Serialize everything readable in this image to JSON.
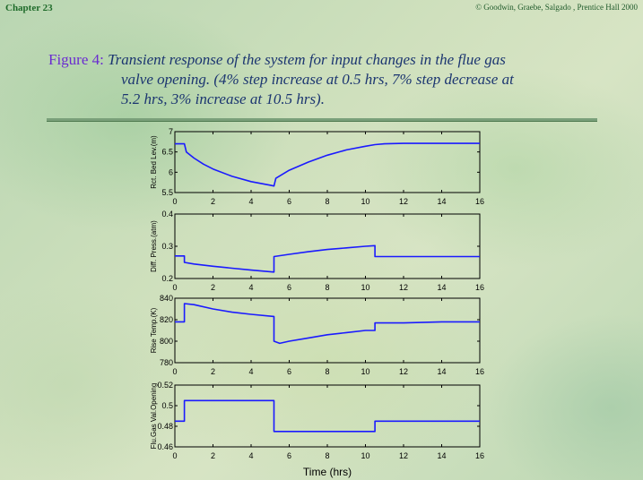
{
  "header": {
    "chapter": "Chapter 23",
    "copyright": "© Goodwin, Graebe, Salgado , Prentice Hall 2000"
  },
  "figure": {
    "label": "Figure 4:",
    "caption_line1": "Transient response of the system for input changes in the flue gas",
    "caption_line2": "valve opening. (4% step increase at 0.5 hrs, 7% step decrease at",
    "caption_line3": "5.2 hrs, 3% increase at 10.5 hrs)."
  },
  "colors": {
    "line": "#1a1aff",
    "axis": "#000000"
  },
  "chart_data": [
    {
      "type": "line",
      "ylabel": "Rct. Bed Lev.(m)",
      "xlabel": "",
      "xlim": [
        0,
        16
      ],
      "ylim": [
        5.5,
        7
      ],
      "xticks": [
        0,
        2,
        4,
        6,
        8,
        10,
        12,
        14,
        16
      ],
      "yticks": [
        5.5,
        6,
        6.5,
        7
      ],
      "x": [
        0,
        0.5,
        0.6,
        1,
        1.5,
        2,
        3,
        4,
        5,
        5.2,
        5.3,
        6,
        7,
        8,
        9,
        10,
        10.5,
        11,
        12,
        13,
        14,
        15,
        16
      ],
      "y": [
        6.7,
        6.7,
        6.5,
        6.35,
        6.2,
        6.08,
        5.9,
        5.77,
        5.68,
        5.66,
        5.85,
        6.05,
        6.25,
        6.42,
        6.55,
        6.64,
        6.68,
        6.7,
        6.71,
        6.71,
        6.71,
        6.71,
        6.71
      ]
    },
    {
      "type": "line",
      "ylabel": "Diff. Press.(atm)",
      "xlabel": "",
      "xlim": [
        0,
        16
      ],
      "ylim": [
        0.2,
        0.4
      ],
      "xticks": [
        0,
        2,
        4,
        6,
        8,
        10,
        12,
        14,
        16
      ],
      "yticks": [
        0.2,
        0.3,
        0.4
      ],
      "x": [
        0,
        0.5,
        0.5,
        1,
        2,
        3,
        4,
        5,
        5.2,
        5.2,
        6,
        7,
        8,
        9,
        10,
        10.5,
        10.5,
        11,
        12,
        13,
        14,
        15,
        16
      ],
      "y": [
        0.27,
        0.27,
        0.25,
        0.245,
        0.238,
        0.232,
        0.226,
        0.221,
        0.22,
        0.268,
        0.275,
        0.283,
        0.29,
        0.295,
        0.3,
        0.302,
        0.268,
        0.268,
        0.268,
        0.268,
        0.268,
        0.268,
        0.268
      ]
    },
    {
      "type": "line",
      "ylabel": "Rise Temp.(K)",
      "xlabel": "",
      "xlim": [
        0,
        16
      ],
      "ylim": [
        780,
        840
      ],
      "xticks": [
        0,
        2,
        4,
        6,
        8,
        10,
        12,
        14,
        16
      ],
      "yticks": [
        780,
        800,
        820,
        840
      ],
      "x": [
        0,
        0.5,
        0.5,
        1,
        2,
        3,
        4,
        5.2,
        5.2,
        5.5,
        6,
        7,
        8,
        9,
        10,
        10.5,
        10.5,
        11,
        12,
        14,
        16
      ],
      "y": [
        818,
        818,
        835,
        834,
        830,
        827,
        825,
        823,
        800,
        798,
        800,
        803,
        806,
        808,
        810,
        810,
        817,
        817,
        817,
        818,
        818
      ]
    },
    {
      "type": "line",
      "ylabel": "Flu.Gas Val.Opening",
      "xlabel": "Time (hrs)",
      "xlim": [
        0,
        16
      ],
      "ylim": [
        0.46,
        0.52
      ],
      "xticks": [
        0,
        2,
        4,
        6,
        8,
        10,
        12,
        14,
        16
      ],
      "yticks": [
        0.46,
        0.48,
        0.5,
        0.52
      ],
      "x": [
        0,
        0.5,
        0.5,
        5.2,
        5.2,
        10.5,
        10.5,
        16
      ],
      "y": [
        0.485,
        0.485,
        0.505,
        0.505,
        0.475,
        0.475,
        0.485,
        0.485
      ]
    }
  ]
}
